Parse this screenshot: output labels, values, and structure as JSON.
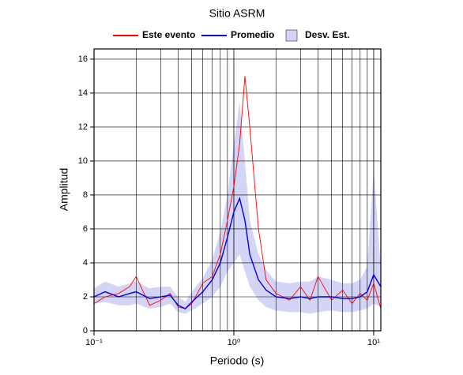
{
  "chart_data": {
    "type": "line",
    "title": "Sitio ASRM",
    "xlabel": "Periodo (s)",
    "ylabel": "Amplitud",
    "xscale": "log",
    "grid": true,
    "legend": "top",
    "x": [
      0.1,
      0.12,
      0.15,
      0.18,
      0.2,
      0.25,
      0.3,
      0.35,
      0.4,
      0.45,
      0.5,
      0.6,
      0.7,
      0.8,
      0.9,
      1.0,
      1.1,
      1.2,
      1.3,
      1.5,
      1.7,
      2.0,
      2.5,
      3,
      3.5,
      4,
      5,
      6,
      7,
      8,
      9,
      10,
      11.25
    ],
    "series": [
      {
        "name": "Este evento",
        "color": "#ff0000",
        "values": [
          1.6,
          2.0,
          2.2,
          2.6,
          3.2,
          1.5,
          1.8,
          2.2,
          1.4,
          1.3,
          1.6,
          2.8,
          3.2,
          4.5,
          6.5,
          8.5,
          11,
          15,
          12,
          6,
          3,
          2.2,
          1.8,
          2.6,
          1.8,
          3.2,
          1.8,
          2.4,
          1.6,
          2.2,
          1.8,
          2.8,
          1.3
        ]
      },
      {
        "name": "Promedio",
        "color": "#0000dd",
        "values": [
          2.0,
          2.3,
          2.0,
          2.2,
          2.3,
          1.9,
          2.0,
          2.1,
          1.5,
          1.3,
          1.7,
          2.3,
          3.0,
          4.0,
          5.5,
          7.0,
          7.8,
          6.5,
          4.5,
          3.0,
          2.4,
          2.0,
          1.9,
          2.0,
          1.9,
          2.0,
          2.0,
          1.9,
          1.9,
          2.0,
          2.3,
          3.3,
          2.6
        ]
      }
    ],
    "band": {
      "name": "Desv. Est.",
      "color": "#d4d4f7",
      "lower": [
        1.6,
        1.7,
        1.5,
        1.5,
        1.6,
        1.3,
        1.4,
        1.6,
        1.1,
        1.0,
        1.2,
        1.6,
        2.0,
        2.6,
        3.5,
        4.0,
        4.5,
        3.5,
        2.6,
        1.8,
        1.4,
        1.2,
        1.1,
        1.1,
        1.0,
        1.1,
        1.2,
        1.1,
        1.1,
        1.2,
        1.3,
        1.6,
        1.4
      ],
      "upper": [
        2.5,
        2.9,
        2.6,
        2.8,
        2.9,
        2.5,
        2.6,
        2.6,
        2.0,
        1.7,
        2.3,
        3.1,
        4.2,
        5.8,
        8.0,
        11,
        13.5,
        10,
        6.5,
        4.5,
        3.6,
        2.9,
        2.8,
        2.9,
        2.9,
        3.2,
        3.0,
        2.8,
        2.8,
        3.0,
        3.8,
        9.5,
        3.8
      ]
    },
    "xlim": [
      0.1,
      11.25
    ],
    "ylim": [
      0,
      16.6
    ],
    "xticks": [
      {
        "value": 0.1,
        "label": "10⁻¹"
      },
      {
        "value": 1,
        "label": "10⁰"
      },
      {
        "value": 10,
        "label": "10¹"
      }
    ],
    "x_minor_ticks": [
      0.2,
      0.3,
      0.4,
      0.5,
      0.6,
      0.7,
      0.8,
      0.9,
      2,
      3,
      4,
      5,
      6,
      7,
      8,
      9
    ],
    "yticks": [
      0,
      2,
      4,
      6,
      8,
      10,
      12,
      14,
      16
    ]
  }
}
